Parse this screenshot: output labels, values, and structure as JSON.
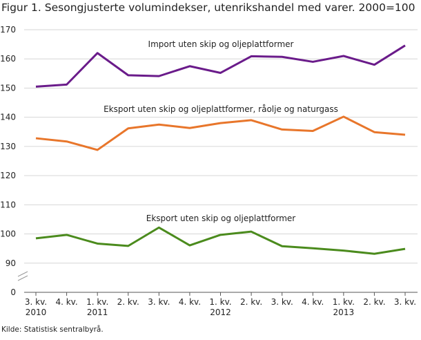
{
  "chart_data": {
    "type": "line",
    "title": "Figur 1. Sesongjusterte volumindekser, utenrikshandel med varer. 2000=100",
    "source": "Kilde: Statistisk sentralbyrå.",
    "categories": [
      "3. kv.\n2010",
      "4. kv.",
      "1. kv.\n2011",
      "2. kv.",
      "3. kv.",
      "4. kv.",
      "1. kv.\n2012",
      "2. kv.",
      "3. kv.",
      "4. kv.",
      "1. kv.\n2013",
      "2. kv.",
      "3. kv."
    ],
    "series": [
      {
        "name": "Import uten skip og oljeplattformer",
        "color": "#6a1b8a",
        "values": [
          150.5,
          151.2,
          162,
          154.4,
          154.1,
          157.5,
          155.2,
          160.9,
          160.7,
          159,
          161,
          158,
          164.6
        ]
      },
      {
        "name": "Eksport uten skip og oljeplattformer, råolje og naturgass",
        "color": "#e8762b",
        "values": [
          132.8,
          131.7,
          128.8,
          136.2,
          137.5,
          136.3,
          138,
          139,
          135.8,
          135.3,
          140.2,
          134.9,
          134
        ]
      },
      {
        "name": "Eksport uten skip og oljeplattformer",
        "color": "#4b8b1d",
        "values": [
          98.5,
          99.7,
          96.7,
          95.9,
          102.2,
          96.1,
          99.7,
          100.8,
          95.8,
          95.1,
          94.3,
          93.2,
          94.9
        ]
      }
    ],
    "ylim": [
      0,
      170
    ],
    "yticks": [
      0,
      90,
      100,
      110,
      120,
      130,
      140,
      150,
      160,
      170
    ],
    "axis_break": true,
    "grid": true
  }
}
